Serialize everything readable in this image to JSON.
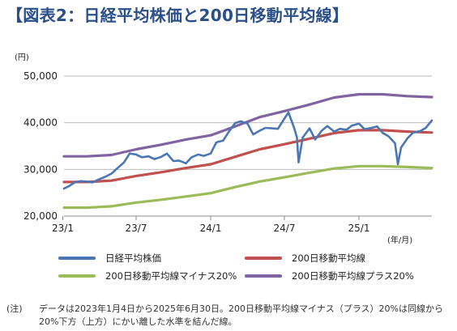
{
  "title": "【図表2：日経平均株価と200日移動平均線】",
  "note": {
    "mark": "(注)",
    "text": "データは2023年1月4日から2025年6月30日。200日移動平均線マイナス（プラス）20%は同線から20%下方（上方）にかい離した水準を結んだ線。"
  },
  "chart_data": {
    "type": "line",
    "y_unit": "(円)",
    "x_unit": "(年/月)",
    "ylim": [
      20000,
      50000
    ],
    "y_ticks": [
      20000,
      30000,
      40000,
      50000
    ],
    "y_tick_labels": [
      "20,000",
      "30,000",
      "40,000",
      "50,000"
    ],
    "x_range": [
      "2023-01-04",
      "2025-06-30"
    ],
    "x_ticks": [
      "2023-01",
      "2023-07",
      "2024-01",
      "2024-07",
      "2025-01"
    ],
    "x_tick_labels": [
      "23/1",
      "23/7",
      "24/1",
      "24/7",
      "25/1"
    ],
    "grid": "horizontal",
    "legend_position": "bottom",
    "series": [
      {
        "name": "日経平均株価",
        "color": "#4a77b4",
        "x": [
          "2023-01-04",
          "2023-01-16",
          "2023-02-01",
          "2023-02-15",
          "2023-03-01",
          "2023-03-15",
          "2023-04-01",
          "2023-04-15",
          "2023-05-01",
          "2023-05-15",
          "2023-06-01",
          "2023-06-15",
          "2023-07-01",
          "2023-07-15",
          "2023-08-01",
          "2023-08-15",
          "2023-09-01",
          "2023-09-15",
          "2023-10-01",
          "2023-10-15",
          "2023-11-01",
          "2023-11-15",
          "2023-12-01",
          "2023-12-15",
          "2024-01-01",
          "2024-01-15",
          "2024-02-01",
          "2024-02-15",
          "2024-03-01",
          "2024-03-15",
          "2024-04-01",
          "2024-04-15",
          "2024-05-01",
          "2024-05-15",
          "2024-06-01",
          "2024-06-15",
          "2024-07-01",
          "2024-07-11",
          "2024-07-25",
          "2024-08-01",
          "2024-08-05",
          "2024-08-15",
          "2024-09-01",
          "2024-09-15",
          "2024-10-01",
          "2024-10-15",
          "2024-11-01",
          "2024-11-15",
          "2024-12-01",
          "2024-12-15",
          "2025-01-01",
          "2025-01-15",
          "2025-02-01",
          "2025-02-15",
          "2025-03-01",
          "2025-03-15",
          "2025-03-31",
          "2025-04-07",
          "2025-04-15",
          "2025-05-01",
          "2025-05-15",
          "2025-06-01",
          "2025-06-15",
          "2025-06-30"
        ],
        "values": [
          25900,
          26400,
          27300,
          27500,
          27400,
          27200,
          27900,
          28400,
          29100,
          30200,
          31500,
          33400,
          33200,
          32600,
          32800,
          32200,
          32700,
          33400,
          31800,
          31900,
          31300,
          32600,
          33200,
          32900,
          33400,
          35800,
          36200,
          38100,
          39900,
          40300,
          39800,
          37500,
          38300,
          38900,
          38800,
          38700,
          40900,
          42200,
          38900,
          36800,
          31500,
          36800,
          38800,
          36400,
          38300,
          39300,
          38100,
          38700,
          38500,
          39400,
          39800,
          38600,
          38900,
          39200,
          37800,
          37100,
          35600,
          31100,
          34700,
          36700,
          37900,
          38200,
          38900,
          40500
        ]
      },
      {
        "name": "200日移動平均線",
        "color": "#c0504d",
        "x": [
          "2023-01-04",
          "2023-03-01",
          "2023-05-01",
          "2023-07-01",
          "2023-09-01",
          "2023-11-01",
          "2024-01-01",
          "2024-03-01",
          "2024-05-01",
          "2024-07-01",
          "2024-09-01",
          "2024-11-01",
          "2025-01-01",
          "2025-03-01",
          "2025-05-01",
          "2025-06-30"
        ],
        "values": [
          27300,
          27300,
          27600,
          28600,
          29400,
          30300,
          31100,
          32700,
          34300,
          35400,
          36600,
          37800,
          38400,
          38400,
          38100,
          37900
        ]
      },
      {
        "name": "200日移動平均線マイナス20%",
        "color": "#9bbb59",
        "x": [
          "2023-01-04",
          "2023-03-01",
          "2023-05-01",
          "2023-07-01",
          "2023-09-01",
          "2023-11-01",
          "2024-01-01",
          "2024-03-01",
          "2024-05-01",
          "2024-07-01",
          "2024-09-01",
          "2024-11-01",
          "2025-01-01",
          "2025-03-01",
          "2025-05-01",
          "2025-06-30"
        ],
        "values": [
          21800,
          21800,
          22100,
          22900,
          23500,
          24200,
          24900,
          26200,
          27400,
          28300,
          29300,
          30200,
          30700,
          30700,
          30500,
          30300
        ]
      },
      {
        "name": "200日移動平均線プラス20%",
        "color": "#8064a2",
        "x": [
          "2023-01-04",
          "2023-03-01",
          "2023-05-01",
          "2023-07-01",
          "2023-09-01",
          "2023-11-01",
          "2024-01-01",
          "2024-03-01",
          "2024-05-01",
          "2024-07-01",
          "2024-09-01",
          "2024-11-01",
          "2025-01-01",
          "2025-03-01",
          "2025-05-01",
          "2025-06-30"
        ],
        "values": [
          32800,
          32800,
          33100,
          34300,
          35300,
          36400,
          37300,
          39200,
          41200,
          42500,
          43900,
          45400,
          46100,
          46100,
          45700,
          45500
        ]
      }
    ]
  }
}
